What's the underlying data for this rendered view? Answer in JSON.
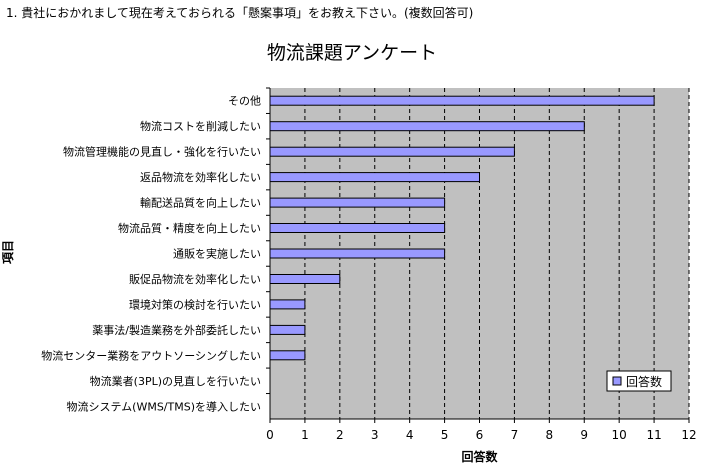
{
  "question": "1. 貴社におかれまして現在考えておられる「懸案事項」をお教え下さい。(複数回答可)",
  "chart_data": {
    "type": "bar",
    "orientation": "horizontal",
    "title": "物流課題アンケート",
    "xlabel": "回答数",
    "ylabel": "項目",
    "xlim": [
      0,
      12
    ],
    "xticks": [
      "0",
      "1",
      "2",
      "3",
      "4",
      "5",
      "6",
      "7",
      "8",
      "9",
      "10",
      "11",
      "12"
    ],
    "categories": [
      "その他",
      "物流コストを削減したい",
      "物流管理機能の見直し・強化を行いたい",
      "返品物流を効率化したい",
      "輸配送品質を向上したい",
      "物流品質・精度を向上したい",
      "通販を実施したい",
      "販促品物流を効率化したい",
      "環境対策の検討を行いたい",
      "薬事法/製造業務を外部委託したい",
      "物流センター業務をアウトソーシングしたい",
      "物流業者(3PL)の見直しを行いたい",
      "物流システム(WMS/TMS)を導入したい"
    ],
    "series": [
      {
        "name": "回答数",
        "values": [
          11,
          9,
          7,
          6,
          5,
          5,
          5,
          2,
          1,
          1,
          1,
          0,
          0
        ]
      }
    ],
    "grid": "vertical dashed",
    "legend_position": "bottom-right",
    "colors": {
      "plot_background": "#c0c0c0",
      "bar_fill": "#9999ff",
      "bar_stroke": "#000000"
    }
  }
}
